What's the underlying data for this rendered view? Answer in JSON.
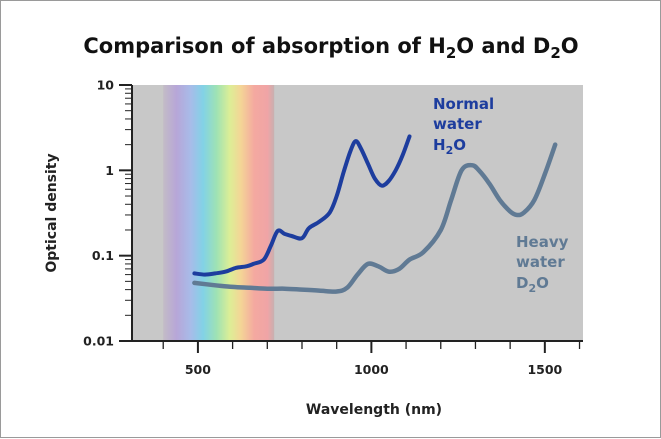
{
  "chart_data": {
    "type": "line",
    "title_parts": {
      "prefix": "Comparison of absorption of H",
      "sub1": "2",
      "mid": "O and D",
      "sub2": "2",
      "suffix": "O"
    },
    "xlabel": "Wavelength (nm)",
    "ylabel": "Optical density",
    "x_scale": "linear",
    "y_scale": "log",
    "xlim": [
      310,
      1610
    ],
    "ylim": [
      0.01,
      10
    ],
    "x_ticks": [
      {
        "value": 500,
        "label": "500"
      },
      {
        "value": 1000,
        "label": "1000"
      },
      {
        "value": 1500,
        "label": "1500"
      }
    ],
    "y_ticks": [
      {
        "value": 10,
        "label": "10"
      },
      {
        "value": 1,
        "label": "1"
      },
      {
        "value": 0.1,
        "label": "0.1"
      },
      {
        "value": 0.01,
        "label": "0.01"
      }
    ],
    "visible_spectrum_nm": [
      400,
      720
    ],
    "series": [
      {
        "name": "Normal water H2O",
        "label_lines": [
          "Normal",
          "water"
        ],
        "formula_parts": [
          "H",
          "2",
          "O"
        ],
        "color": "#1d3d9e",
        "x": [
          490,
          520,
          550,
          580,
          610,
          640,
          660,
          690,
          710,
          730,
          750,
          770,
          800,
          820,
          850,
          880,
          900,
          920,
          940,
          955,
          970,
          990,
          1010,
          1030,
          1050,
          1070,
          1090,
          1110
        ],
        "y": [
          0.062,
          0.06,
          0.062,
          0.065,
          0.072,
          0.075,
          0.08,
          0.09,
          0.13,
          0.195,
          0.18,
          0.17,
          0.16,
          0.21,
          0.25,
          0.32,
          0.5,
          0.95,
          1.7,
          2.2,
          1.8,
          1.2,
          0.8,
          0.66,
          0.75,
          1.0,
          1.5,
          2.5
        ]
      },
      {
        "name": "Heavy water D2O",
        "label_lines": [
          "Heavy",
          "water"
        ],
        "formula_parts": [
          "D",
          "2",
          "O"
        ],
        "color": "#607a94",
        "x": [
          490,
          550,
          600,
          650,
          700,
          750,
          800,
          850,
          900,
          930,
          960,
          990,
          1020,
          1050,
          1080,
          1110,
          1150,
          1200,
          1230,
          1260,
          1290,
          1310,
          1340,
          1370,
          1400,
          1420,
          1440,
          1470,
          1500,
          1530
        ],
        "y": [
          0.048,
          0.045,
          0.043,
          0.042,
          0.041,
          0.041,
          0.04,
          0.039,
          0.038,
          0.042,
          0.06,
          0.08,
          0.075,
          0.065,
          0.07,
          0.09,
          0.11,
          0.2,
          0.45,
          1.0,
          1.15,
          1.0,
          0.7,
          0.45,
          0.33,
          0.3,
          0.32,
          0.45,
          0.9,
          2.0
        ]
      }
    ]
  }
}
